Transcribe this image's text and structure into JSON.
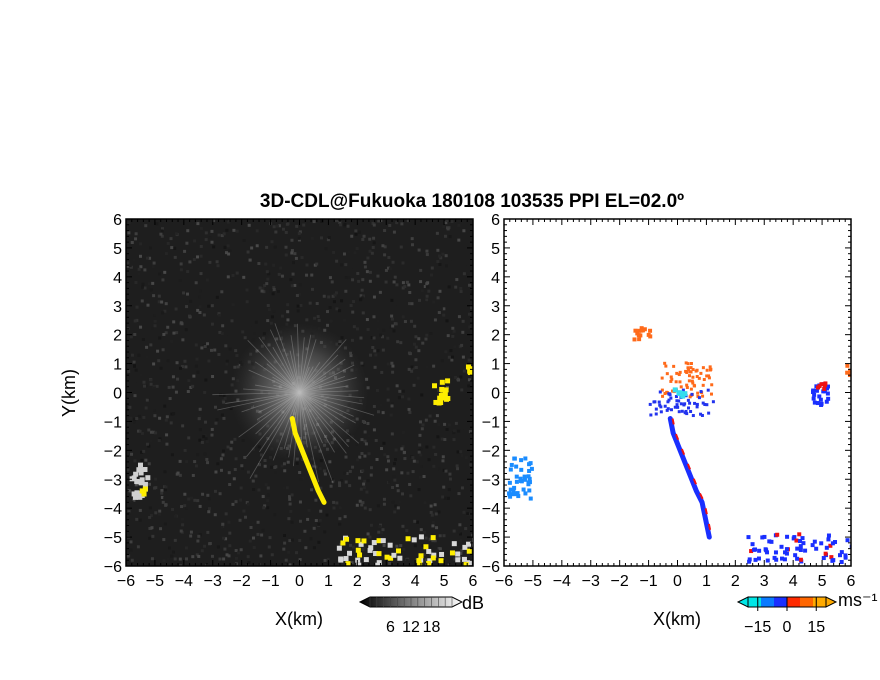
{
  "title": "3D-CDL@Fukuoka 180108 103535 PPI EL=02.0º",
  "chart_data": [
    {
      "type": "heatmap",
      "quantity": "dB",
      "xlabel": "X(km)",
      "ylabel": "Y(km)",
      "xlim": [
        -6,
        6
      ],
      "ylim": [
        -6,
        6
      ],
      "xticks": [
        "−6",
        "−5",
        "−4",
        "−3",
        "−2",
        "−1",
        "0",
        "1",
        "2",
        "3",
        "4",
        "5",
        "6"
      ],
      "yticks": [
        "−6",
        "−5",
        "−4",
        "−3",
        "−2",
        "−1",
        "0",
        "1",
        "2",
        "3",
        "4",
        "5",
        "6"
      ],
      "colorbar": {
        "label": "dB",
        "ticks": [
          "6",
          "12",
          "18"
        ],
        "range": [
          0,
          24
        ],
        "colors": [
          "#000000",
          "#ffffff"
        ]
      },
      "background_color": "#1e1e1e",
      "highlight_color": "#ffee00",
      "echoes": [
        {
          "name": "radial-clutter",
          "x": 0.0,
          "y": 0.0,
          "max_radius_km": 2.4
        },
        {
          "name": "line-echo",
          "points": [
            [
              -0.25,
              -0.9
            ],
            [
              -0.15,
              -1.4
            ],
            [
              0.05,
              -1.9
            ],
            [
              0.25,
              -2.4
            ],
            [
              0.45,
              -2.9
            ],
            [
              0.65,
              -3.4
            ],
            [
              0.85,
              -3.8
            ]
          ]
        },
        {
          "name": "east-patch",
          "x": 4.8,
          "y": 0.1
        },
        {
          "name": "east-edge-patch",
          "x": 5.85,
          "y": 0.8
        },
        {
          "name": "west-patch",
          "x": -5.6,
          "y": -3.0
        },
        {
          "name": "southeast-band",
          "x": 3.5,
          "y": -5.4
        }
      ]
    },
    {
      "type": "heatmap",
      "quantity": "Doppler velocity",
      "xlabel": "X(km)",
      "xlim": [
        -6,
        6
      ],
      "ylim": [
        -6,
        6
      ],
      "xticks": [
        "−6",
        "−5",
        "−4",
        "−3",
        "−2",
        "−1",
        "0",
        "1",
        "2",
        "3",
        "4",
        "5",
        "6"
      ],
      "yticks": [
        "−6",
        "−5",
        "−4",
        "−3",
        "−2",
        "−1",
        "0",
        "1",
        "2",
        "3",
        "4",
        "5",
        "6"
      ],
      "colorbar": {
        "label": "ms⁻¹",
        "ticks": [
          "−15",
          "0",
          "15"
        ],
        "range": [
          -20,
          20
        ],
        "colors": [
          "#00e6e6",
          "#0a7aff",
          "#1a2fff",
          "#ff2a00",
          "#ff6600",
          "#ffaa00"
        ]
      },
      "echoes": [
        {
          "name": "outbound-cluster-north",
          "x": -1.3,
          "y": 2.1,
          "color": "#ff6a1a"
        },
        {
          "name": "mixed-cluster-center",
          "x": 0.3,
          "y": 0.5,
          "color": "#ff6a1a"
        },
        {
          "name": "inbound-cluster-center",
          "x": 0.1,
          "y": -0.3,
          "color": "#2233ee"
        },
        {
          "name": "cyan-center",
          "x": 0.0,
          "y": 0.0,
          "color": "#33ddee"
        },
        {
          "name": "line-echo",
          "points": [
            [
              -0.25,
              -0.9
            ],
            [
              -0.15,
              -1.4
            ],
            [
              0.05,
              -1.9
            ],
            [
              0.25,
              -2.4
            ],
            [
              0.45,
              -2.9
            ],
            [
              0.65,
              -3.4
            ],
            [
              0.85,
              -3.8
            ],
            [
              1.1,
              -5.0
            ]
          ],
          "color": "#1a2fff"
        },
        {
          "name": "west-patch",
          "x": -5.5,
          "y": -2.9,
          "color": "#1a8cff"
        },
        {
          "name": "east-patch",
          "x": 4.9,
          "y": 0.0,
          "color": "#1a2fff"
        },
        {
          "name": "east-edge-patch",
          "x": 5.85,
          "y": 0.8,
          "color": "#ff6a1a"
        },
        {
          "name": "southeast-band",
          "x": 3.8,
          "y": -5.3,
          "color": "#1a2fff"
        }
      ]
    }
  ]
}
